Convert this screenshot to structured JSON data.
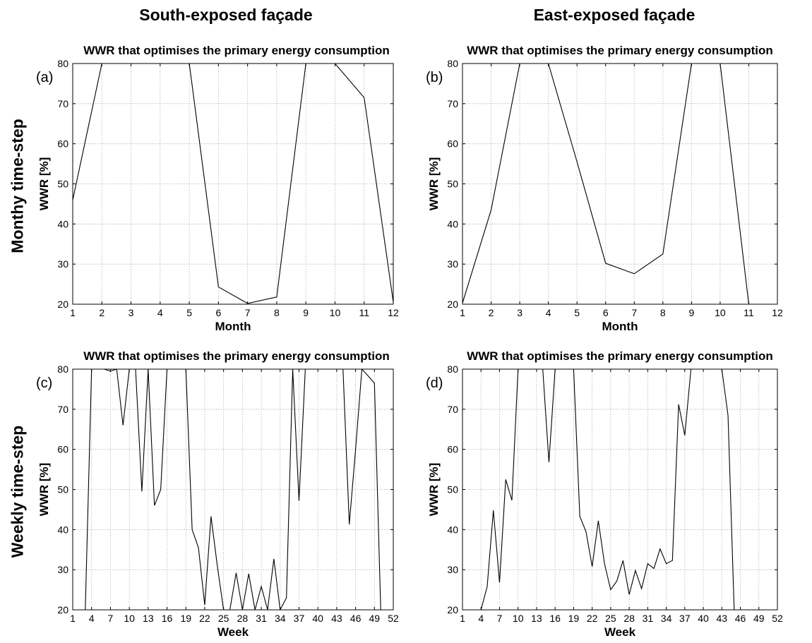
{
  "column_headers": [
    "South-exposed façade",
    "East-exposed façade"
  ],
  "row_headers": [
    "Monthy time-step",
    "Weekly time-step"
  ],
  "colors": {
    "line": "#000000",
    "grid": "#b0b0b0",
    "axis": "#000000"
  },
  "chart_data": [
    {
      "type": "line",
      "panel_label": "(a)",
      "title": "WWR that optimises the primary energy consumption",
      "xlabel": "Month",
      "ylabel": "WWR [%]",
      "xlim": [
        1,
        12
      ],
      "ylim": [
        20,
        80
      ],
      "xticks": [
        1,
        2,
        3,
        4,
        5,
        6,
        7,
        8,
        9,
        10,
        11,
        12
      ],
      "yticks": [
        20,
        30,
        40,
        50,
        60,
        70,
        80
      ],
      "grid": true,
      "x": [
        1,
        2,
        3,
        4,
        5,
        6,
        7,
        8,
        9,
        10,
        11,
        12
      ],
      "series": [
        {
          "values": [
            46,
            80,
            80,
            80,
            80,
            24.3,
            20.2,
            21.8,
            80,
            80,
            71.5,
            20.5
          ]
        }
      ]
    },
    {
      "type": "line",
      "panel_label": "(b)",
      "title": "WWR that optimises the primary energy consumption",
      "xlabel": "Month",
      "ylabel": "WWR [%]",
      "xlim": [
        1,
        12
      ],
      "ylim": [
        20,
        80
      ],
      "xticks": [
        1,
        2,
        3,
        4,
        5,
        6,
        7,
        8,
        9,
        10,
        11,
        12
      ],
      "yticks": [
        20,
        30,
        40,
        50,
        60,
        70,
        80
      ],
      "grid": true,
      "x": [
        1,
        2,
        3,
        4,
        5,
        6,
        7,
        8,
        9,
        10,
        11
      ],
      "series": [
        {
          "values": [
            20.3,
            43.5,
            80,
            80,
            55.5,
            30.2,
            27.6,
            32.5,
            80,
            80,
            20
          ]
        }
      ]
    },
    {
      "type": "line",
      "panel_label": "(c)",
      "title": "WWR that optimises the primary energy consumption",
      "xlabel": "Week",
      "ylabel": "WWR [%]",
      "xlim": [
        1,
        52
      ],
      "ylim": [
        20,
        80
      ],
      "xticks": [
        1,
        4,
        7,
        10,
        13,
        16,
        19,
        22,
        25,
        28,
        31,
        34,
        37,
        40,
        43,
        46,
        49,
        52
      ],
      "yticks": [
        20,
        30,
        40,
        50,
        60,
        70,
        80
      ],
      "grid": true,
      "x": [
        3,
        4,
        5,
        6,
        7,
        8,
        9,
        10,
        11,
        12,
        13,
        14,
        15,
        16,
        17,
        18,
        19,
        20,
        21,
        22,
        23,
        24,
        25,
        26,
        27,
        28,
        29,
        30,
        31,
        32,
        33,
        34,
        35,
        36,
        37,
        38,
        39,
        40,
        41,
        42,
        43,
        44,
        45,
        46,
        47,
        48,
        49,
        50
      ],
      "series": [
        {
          "values": [
            20,
            80,
            80,
            80,
            79.5,
            80,
            66,
            80,
            80,
            49.5,
            80,
            46,
            50,
            80,
            80,
            80,
            80,
            40,
            35.5,
            21.2,
            43.3,
            31,
            20,
            20,
            29.2,
            20,
            29,
            20,
            25.8,
            20,
            32.7,
            20,
            23,
            80,
            47.2,
            80,
            80,
            80,
            80,
            80,
            80,
            80,
            41.3,
            60,
            80,
            78.3,
            76.5,
            20
          ]
        }
      ]
    },
    {
      "type": "line",
      "panel_label": "(d)",
      "title": "WWR that optimises the primary energy consumption",
      "xlabel": "Week",
      "ylabel": "WWR [%]",
      "xlim": [
        1,
        52
      ],
      "ylim": [
        20,
        80
      ],
      "xticks": [
        1,
        4,
        7,
        10,
        13,
        16,
        19,
        22,
        25,
        28,
        31,
        34,
        37,
        40,
        43,
        46,
        49,
        52
      ],
      "yticks": [
        20,
        30,
        40,
        50,
        60,
        70,
        80
      ],
      "grid": true,
      "x": [
        4,
        5,
        6,
        7,
        8,
        9,
        10,
        11,
        12,
        13,
        14,
        15,
        16,
        17,
        18,
        19,
        20,
        21,
        22,
        23,
        24,
        25,
        26,
        27,
        28,
        29,
        30,
        31,
        32,
        33,
        34,
        35,
        36,
        37,
        38,
        39,
        40,
        41,
        42,
        43,
        44,
        45
      ],
      "series": [
        {
          "values": [
            20,
            25.8,
            44.8,
            26.8,
            52.5,
            47.3,
            80,
            80,
            80,
            80,
            80,
            56.8,
            80,
            80,
            80,
            80,
            43.3,
            39.5,
            30.8,
            42.2,
            31.5,
            25,
            27.2,
            32.3,
            23.8,
            29.8,
            25.3,
            31.5,
            30.3,
            35.2,
            31.5,
            32.3,
            71.2,
            63.5,
            80,
            80,
            80,
            80,
            80,
            80,
            68.5,
            20
          ]
        }
      ]
    }
  ]
}
